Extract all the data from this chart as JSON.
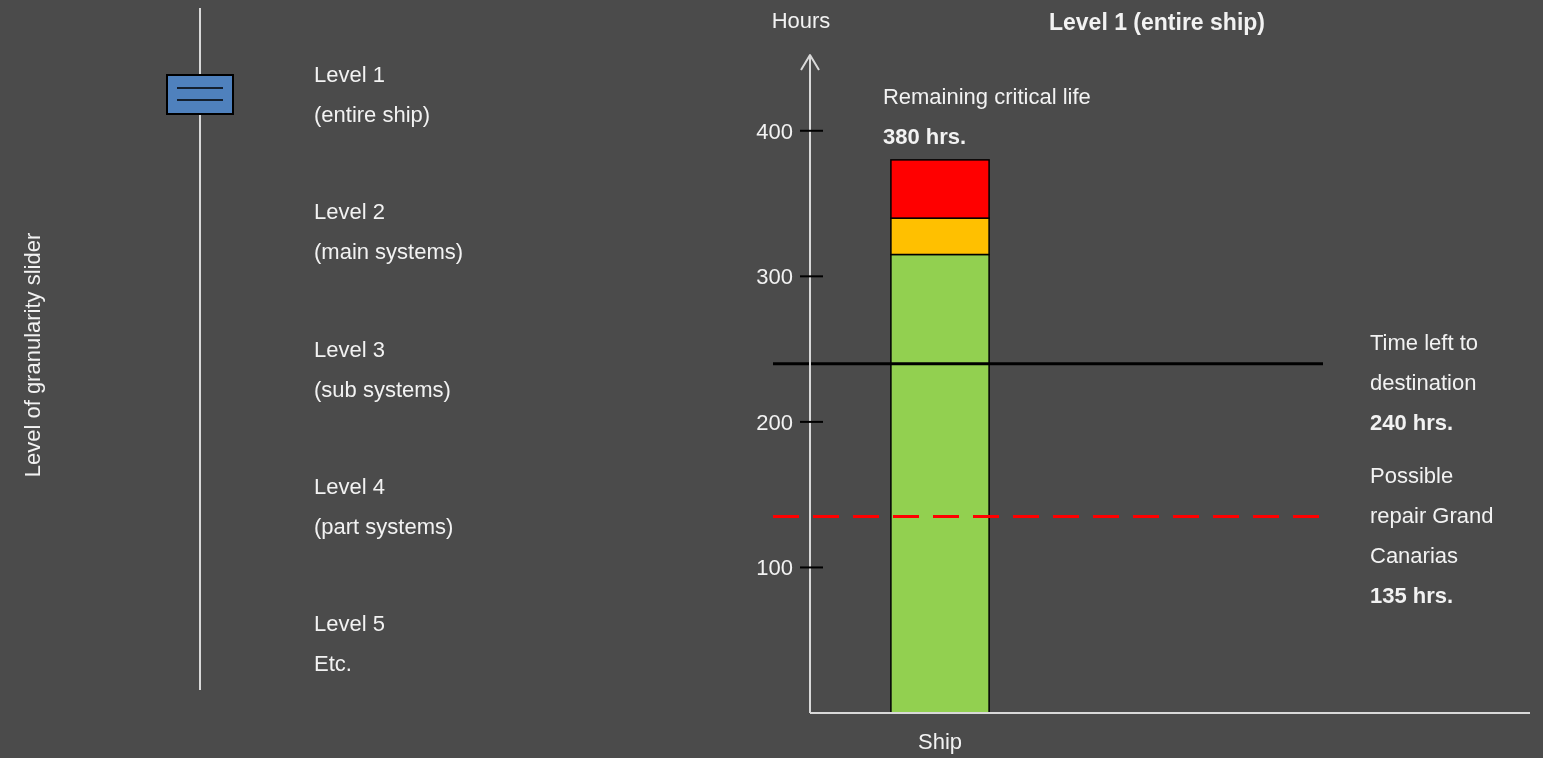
{
  "chart_data": {
    "type": "bar",
    "title": "Level 1 (entire ship)",
    "ylabel": "Hours",
    "categories": [
      "Ship"
    ],
    "stacked": true,
    "series": [
      {
        "color": "#92d050",
        "values": [
          315
        ]
      },
      {
        "color": "#ffc000",
        "values": [
          25
        ]
      },
      {
        "color": "#ff0000",
        "values": [
          40
        ]
      }
    ],
    "ylim": [
      0,
      450
    ],
    "yticks": [
      100,
      200,
      300,
      400
    ],
    "annotations": [
      {
        "text": "Remaining critical life\n380 hrs.",
        "x": "Ship",
        "y": 380
      },
      "Level of granularity slider",
      "Level 1\n(entire ship)",
      "Level 2\n(main systems)",
      "Level 3\n(sub systems)",
      "Level 4\n(part systems)",
      "Level 5\nEtc."
    ],
    "ref_lines": [
      {
        "axis": "y",
        "value": 240,
        "label": "Time left to\ndestination\n240 hrs.",
        "color": "#000000",
        "line_style": "solid"
      },
      {
        "axis": "y",
        "value": 135,
        "label": "Possible\nrepair Grand\nCanarias\n135 hrs.",
        "color": "#ff0000",
        "line_style": "dashed"
      }
    ]
  }
}
